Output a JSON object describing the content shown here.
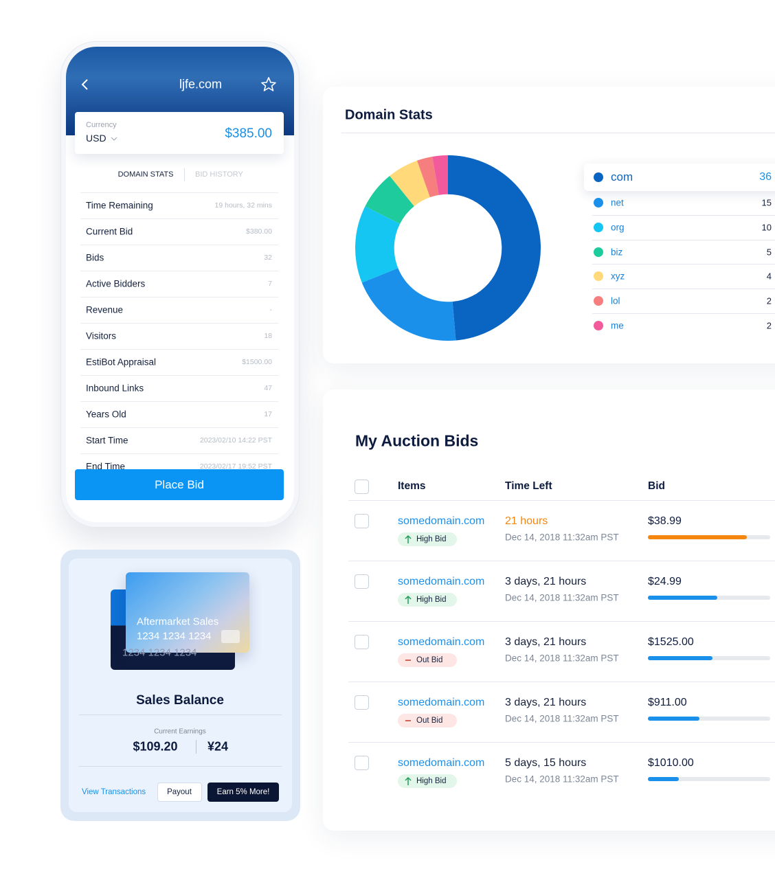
{
  "phone": {
    "domain": "ljfe.com",
    "currency_label": "Currency",
    "currency": "USD",
    "price": "$385.00",
    "tabs": [
      "DOMAIN STATS",
      "BID HISTORY"
    ],
    "rows": [
      [
        "Time Remaining",
        "19 hours, 32 mins"
      ],
      [
        "Current Bid",
        "$380.00"
      ],
      [
        "Bids",
        "32"
      ],
      [
        "Active Bidders",
        "7"
      ],
      [
        "Revenue",
        "-"
      ],
      [
        "Visitors",
        "18"
      ],
      [
        "EstiBot Appraisal",
        "$1500.00"
      ],
      [
        "Inbound Links",
        "47"
      ],
      [
        "Years Old",
        "17"
      ],
      [
        "Start Time",
        "2023/02/10 14:22 PST"
      ],
      [
        "End Time",
        "2023/02/17 19:52 PST"
      ]
    ],
    "button": "Place Bid"
  },
  "balance": {
    "card_title": "Aftermarket Sales",
    "card_number": "1234 1234 1234",
    "title": "Sales Balance",
    "earnings_label": "Current Earnings",
    "amount": "$109.20",
    "amount_alt": "¥24",
    "link": "View Transactions",
    "buttons": [
      "Payout",
      "Earn 5% More!"
    ]
  },
  "chart_data": {
    "type": "pie",
    "title": "Domain Stats",
    "categories": [
      "com",
      "net",
      "org",
      "biz",
      "xyz",
      "lol",
      "me"
    ],
    "values": [
      36,
      15,
      10,
      5,
      4,
      2,
      2
    ],
    "colors": [
      "#0a64c2",
      "#1a90ea",
      "#16c6f2",
      "#1ecb9c",
      "#ffd97a",
      "#f77e7e",
      "#f25a9c"
    ],
    "inner_radius_ratio": 0.58
  },
  "auction": {
    "title": "My Auction Bids",
    "headers": [
      "Items",
      "Time Left",
      "Bid"
    ],
    "rows": [
      {
        "item": "somedomain.com",
        "status": {
          "text": "High Bid",
          "icon": "arrow-up",
          "color": "#1f9d55",
          "bg": "#e3f6ea"
        },
        "time_left": "21 hours",
        "time_color": "#f5860f",
        "date": "Dec 14, 2018 11:32am PST",
        "bid": "$38.99",
        "progress": 0.81,
        "bar_color": "#f5860f"
      },
      {
        "item": "somedomain.com",
        "status": {
          "text": "High Bid",
          "icon": "arrow-up",
          "color": "#1f9d55",
          "bg": "#e3f6ea"
        },
        "time_left": "3 days, 21 hours",
        "time_color": "#14213d",
        "date": "Dec 14, 2018 11:32am PST",
        "bid": "$24.99",
        "progress": 0.57,
        "bar_color": "#1a90ea"
      },
      {
        "item": "somedomain.com",
        "status": {
          "text": "Out Bid",
          "icon": "minus",
          "color": "#c0392b",
          "bg": "#fde6e4"
        },
        "time_left": "3 days, 21 hours",
        "time_color": "#14213d",
        "date": "Dec 14, 2018 11:32am PST",
        "bid": "$1525.00",
        "progress": 0.53,
        "bar_color": "#1a90ea"
      },
      {
        "item": "somedomain.com",
        "status": {
          "text": "Out Bid",
          "icon": "minus",
          "color": "#c0392b",
          "bg": "#fde6e4"
        },
        "time_left": "3 days, 21 hours",
        "time_color": "#14213d",
        "date": "Dec 14, 2018 11:32am PST",
        "bid": "$911.00",
        "progress": 0.42,
        "bar_color": "#1a90ea"
      },
      {
        "item": "somedomain.com",
        "status": {
          "text": "High Bid",
          "icon": "arrow-up",
          "color": "#1f9d55",
          "bg": "#e3f6ea"
        },
        "time_left": "5 days, 15 hours",
        "time_color": "#14213d",
        "date": "Dec 14, 2018 11:32am PST",
        "bid": "$1010.00",
        "progress": 0.25,
        "bar_color": "#1a90ea"
      }
    ]
  }
}
